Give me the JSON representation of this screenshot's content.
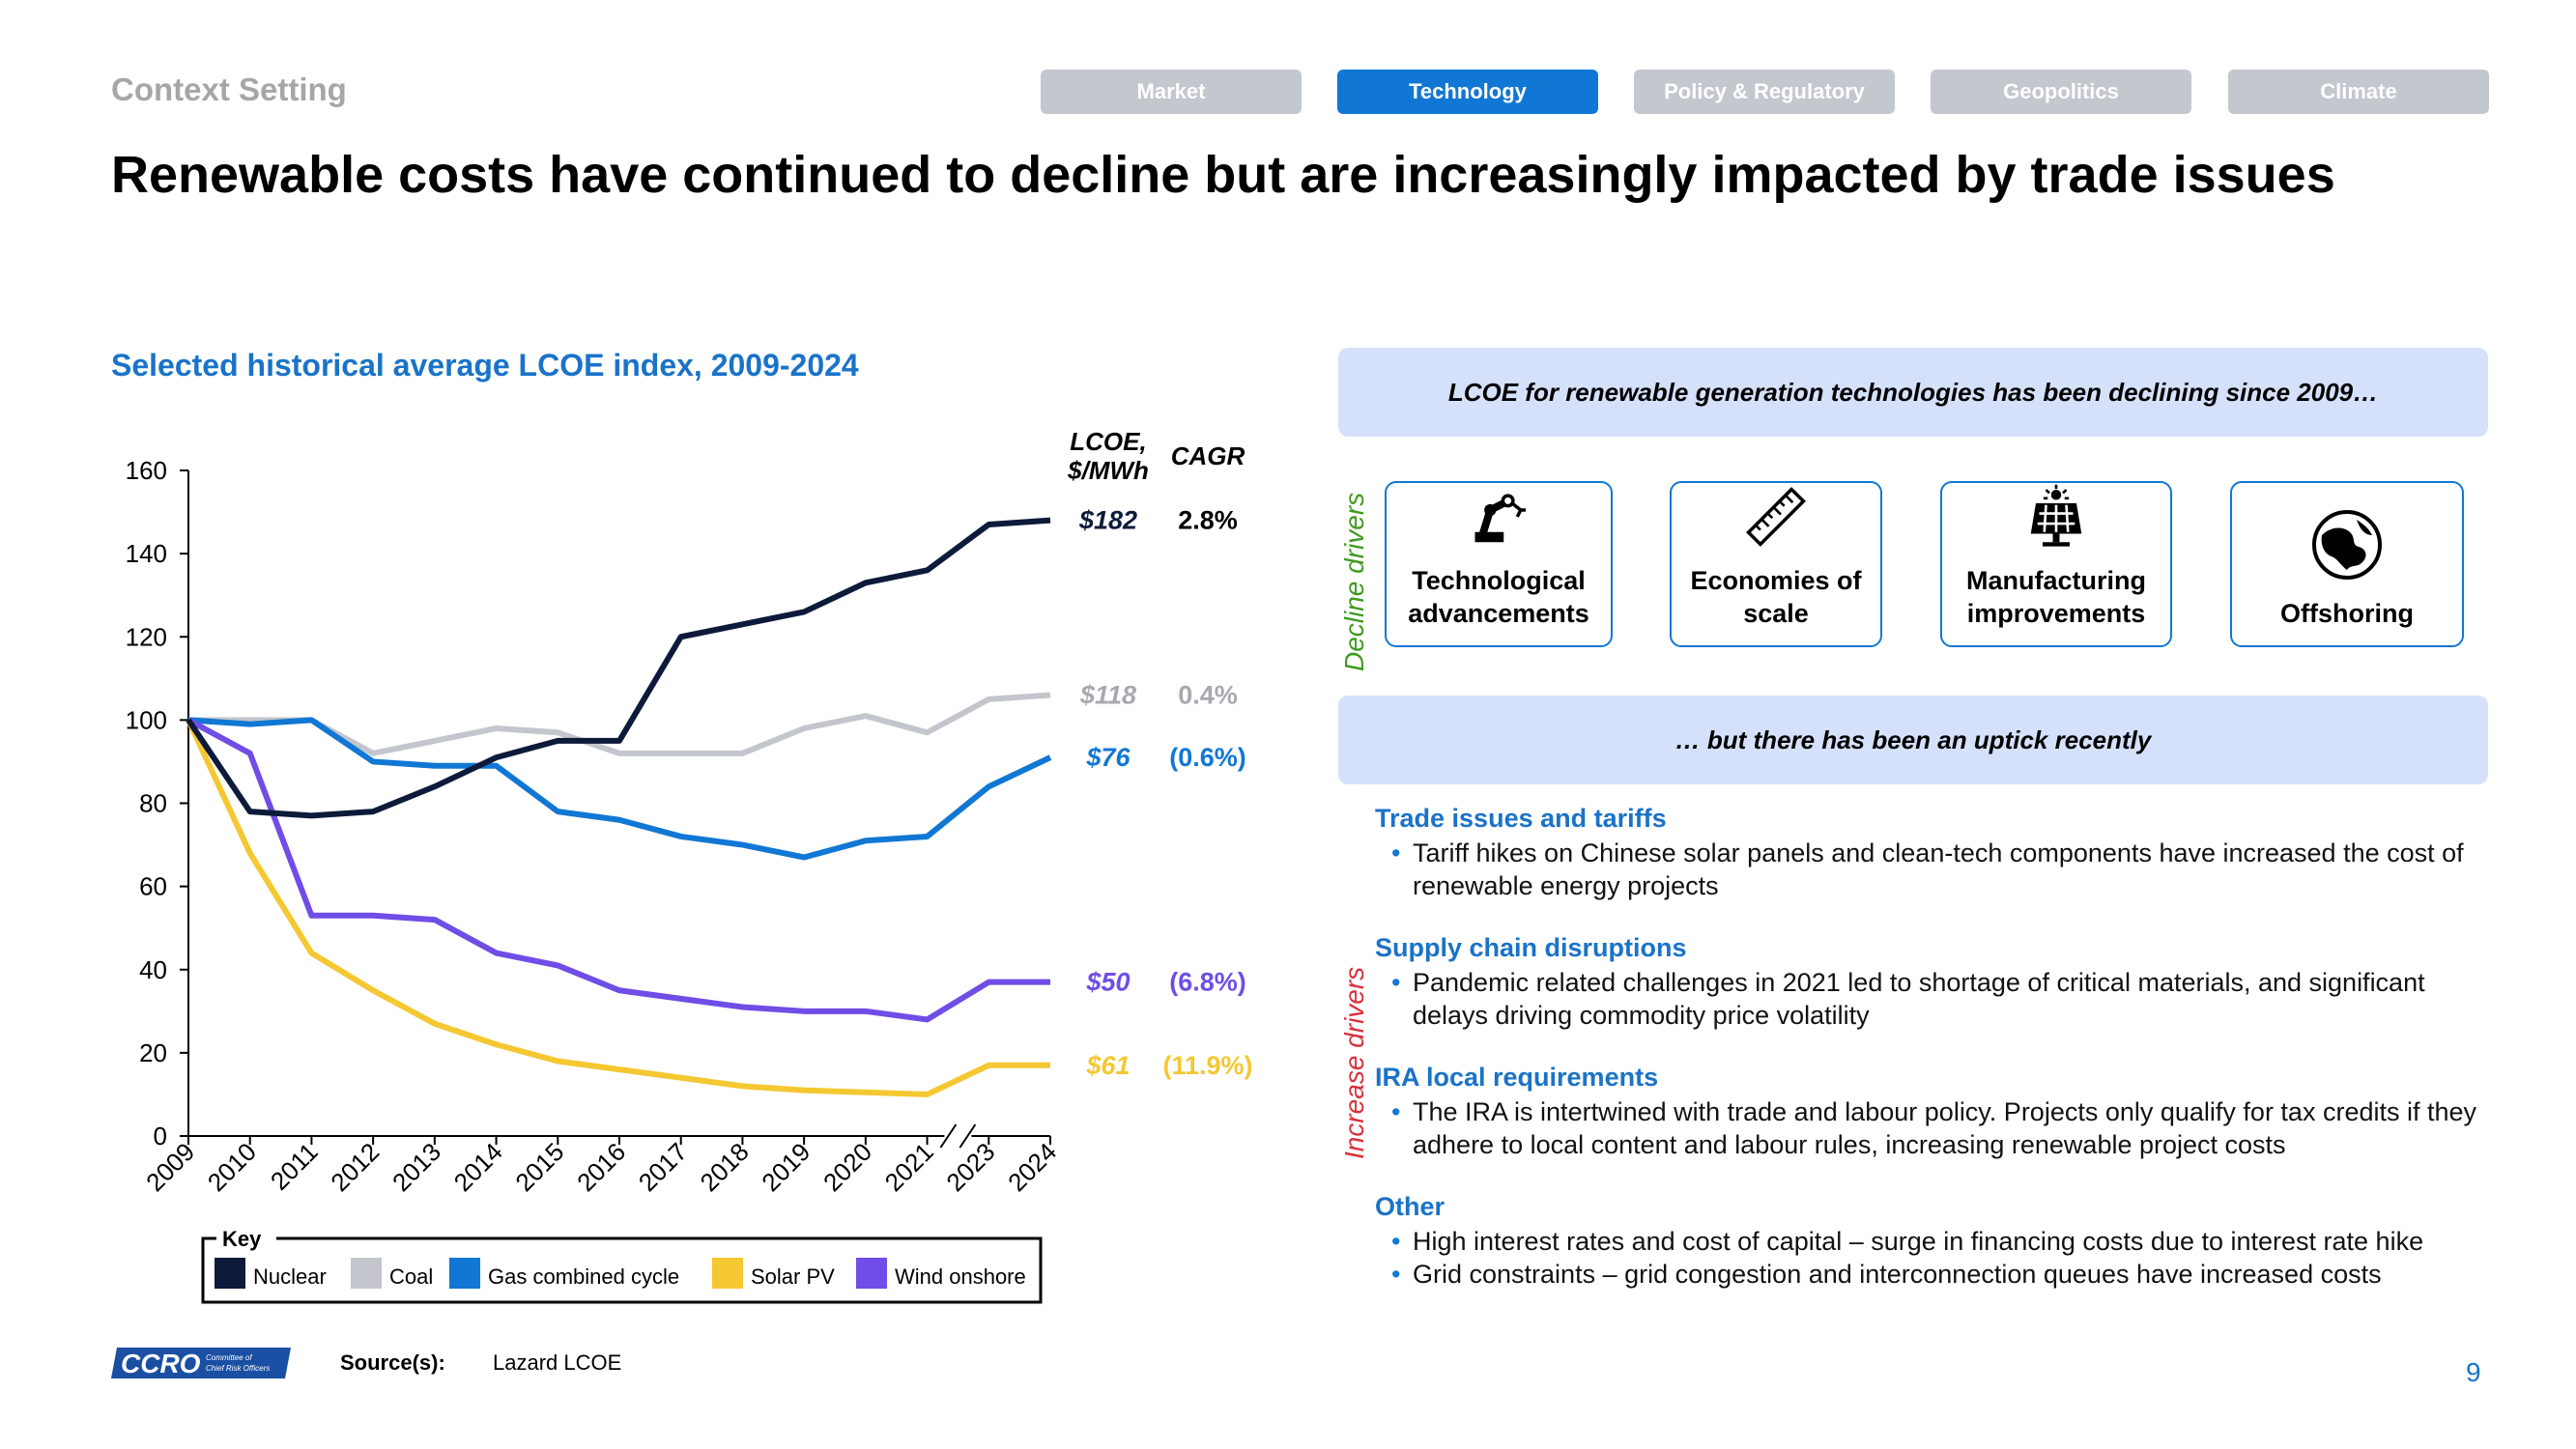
{
  "header": {
    "context": "Context Setting",
    "tabs": [
      {
        "label": "Market",
        "active": false
      },
      {
        "label": "Technology",
        "active": true
      },
      {
        "label": "Policy & Regulatory",
        "active": false
      },
      {
        "label": "Geopolitics",
        "active": false
      },
      {
        "label": "Climate",
        "active": false
      }
    ],
    "title": "Renewable costs have continued to decline but are increasingly impacted by trade issues"
  },
  "chart_heading": "Selected historical average LCOE index, 2009-2024",
  "chart_data": {
    "type": "line",
    "x": [
      "2009",
      "2010",
      "2011",
      "2012",
      "2013",
      "2014",
      "2015",
      "2016",
      "2017",
      "2018",
      "2019",
      "2020",
      "2021",
      "2023",
      "2024"
    ],
    "ylim": [
      0,
      160
    ],
    "yticks": [
      0,
      20,
      40,
      60,
      80,
      100,
      120,
      140,
      160
    ],
    "axis_break_between": [
      "2021",
      "2023"
    ],
    "series": [
      {
        "name": "Nuclear",
        "color": "#0d1a3a",
        "values": [
          100,
          78,
          77,
          78,
          84,
          91,
          95,
          95,
          120,
          123,
          126,
          133,
          136,
          147,
          148
        ]
      },
      {
        "name": "Coal",
        "color": "#c3c6cc",
        "values": [
          100,
          100,
          100,
          92,
          95,
          98,
          97,
          92,
          92,
          92,
          98,
          101,
          97,
          105,
          106
        ]
      },
      {
        "name": "Gas combined cycle",
        "color": "#1177d4",
        "values": [
          100,
          99,
          100,
          90,
          89,
          89,
          78,
          76,
          72,
          70,
          67,
          71,
          72,
          84,
          91
        ]
      },
      {
        "name": "Solar PV",
        "color": "#f5c731",
        "values": [
          100,
          68,
          44,
          35,
          27,
          22,
          18,
          16,
          14,
          12,
          11,
          10.5,
          10,
          17,
          17
        ]
      },
      {
        "name": "Wind onshore",
        "color": "#6f4de6",
        "values": [
          100,
          92,
          53,
          53,
          52,
          44,
          41,
          35,
          33,
          31,
          30,
          30,
          28,
          37,
          37
        ]
      }
    ],
    "value_labels": {
      "header_lcoe": "LCOE, $/MWh",
      "header_cagr": "CAGR",
      "rows": [
        {
          "series": "Nuclear",
          "lcoe": "$182",
          "cagr": "2.8%",
          "color": "#0d1a3a",
          "cagr_color": "#000000"
        },
        {
          "series": "Coal",
          "lcoe": "$118",
          "cagr": "0.4%",
          "color": "#a6a9b0",
          "cagr_color": "#a6a9b0"
        },
        {
          "series": "Gas combined cycle",
          "lcoe": "$76",
          "cagr": "(0.6%)",
          "color": "#1177d4",
          "cagr_color": "#1177d4"
        },
        {
          "series": "Wind onshore",
          "lcoe": "$50",
          "cagr": "(6.8%)",
          "color": "#6f4de6",
          "cagr_color": "#6f4de6"
        },
        {
          "series": "Solar PV",
          "lcoe": "$61",
          "cagr": "(11.9%)",
          "color": "#f5c731",
          "cagr_color": "#f5c731"
        }
      ]
    },
    "legend": {
      "title": "Key",
      "placement": "bottom"
    }
  },
  "right": {
    "banner_top": "LCOE for renewable generation technologies has been declining since 2009…",
    "decline_label": "Decline drivers",
    "decline_cards": [
      {
        "icon": "robot-arm-icon",
        "label": "Technological advancements"
      },
      {
        "icon": "ruler-icon",
        "label": "Economies of scale"
      },
      {
        "icon": "solar-panel-icon",
        "label": "Manufacturing improvements"
      },
      {
        "icon": "globe-icon",
        "label": "Offshoring"
      }
    ],
    "banner_mid": "… but there has been an uptick recently",
    "increase_label": "Increase drivers",
    "sections": [
      {
        "heading": "Trade issues and tariffs",
        "bullets": [
          "Tariff hikes on Chinese solar panels and clean-tech components have increased the cost of renewable energy projects"
        ]
      },
      {
        "heading": "Supply chain disruptions",
        "bullets": [
          "Pandemic related challenges in 2021 led to shortage of critical materials, and significant delays driving commodity price volatility"
        ]
      },
      {
        "heading": "IRA local requirements",
        "bullets": [
          "The IRA is intertwined with trade and labour policy. Projects only qualify for tax credits if they adhere to local content and labour rules, increasing renewable project costs"
        ]
      },
      {
        "heading": "Other",
        "bullets": [
          "High interest rates and cost of capital – surge in financing costs due to interest rate hike",
          "Grid constraints – grid congestion and interconnection queues have increased costs"
        ]
      }
    ],
    "colors": {
      "decline": "#3f9a1e",
      "increase": "#d9303a"
    }
  },
  "footer": {
    "logo_text": "CCRO",
    "logo_sub": "Committee of Chief Risk Officers",
    "source_label": "Source(s):",
    "source_value": "Lazard LCOE",
    "page": "9"
  }
}
